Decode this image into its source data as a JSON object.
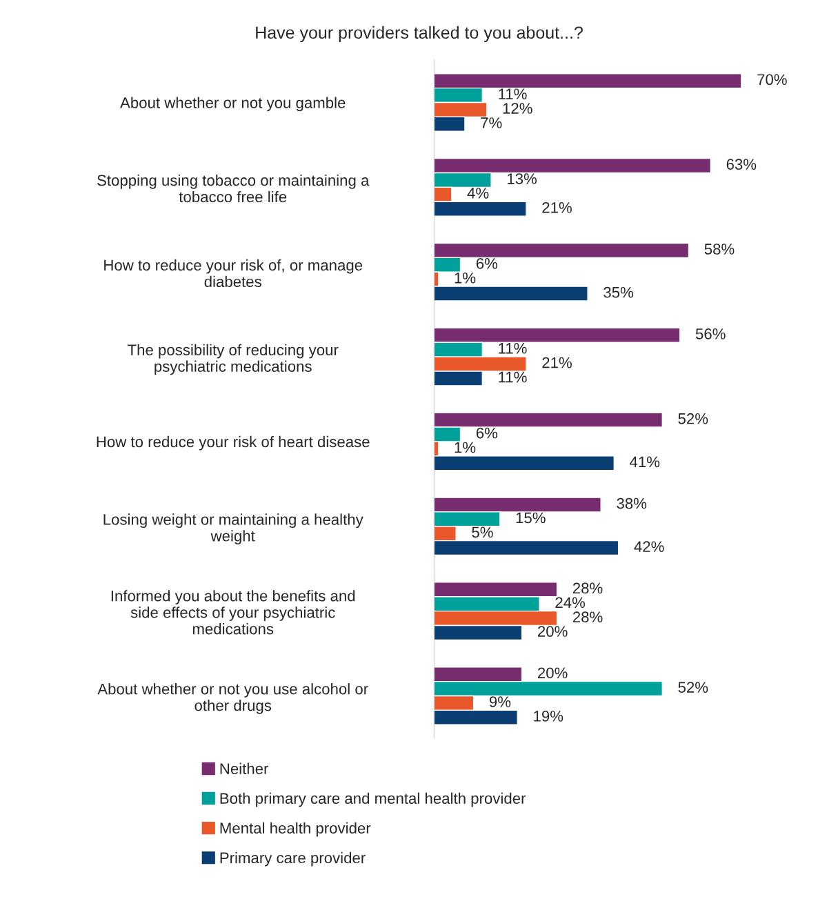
{
  "chart_data": {
    "type": "bar",
    "orientation": "horizontal",
    "title": "Have your providers talked to you about...?",
    "categories": [
      "About whether or not you gamble",
      "Stopping using tobacco or maintaining a\ntobacco free life",
      "How to reduce your risk of, or manage\ndiabetes",
      "The possibility of reducing your\npsychiatric medications",
      "How to reduce your risk of heart disease",
      "Losing weight or maintaining a healthy\nweight",
      "Informed you about the benefits and\nside effects of your psychiatric\nmedications",
      "About whether or not you use alcohol or\nother drugs"
    ],
    "series": [
      {
        "name": "Neither",
        "color": "#772d6f",
        "values": [
          70,
          63,
          58,
          56,
          52,
          38,
          28,
          20
        ],
        "value_labels": [
          "70%",
          "63%",
          "58%",
          "56%",
          "52%",
          "38%",
          "28%",
          "20%"
        ]
      },
      {
        "name": "Both primary care and mental health provider",
        "color": "#00a19a",
        "values": [
          11,
          13,
          6,
          11,
          6,
          15,
          24,
          52
        ],
        "value_labels": [
          "11%",
          "13%",
          "6%",
          "11%",
          "6%",
          "15%",
          "24%",
          "52%"
        ]
      },
      {
        "name": "Mental health provider",
        "color": "#e8582a",
        "values": [
          12,
          4,
          1,
          21,
          1,
          5,
          28,
          9
        ],
        "value_labels": [
          "12%",
          "4%",
          "1%",
          "21%",
          "1%",
          "5%",
          "28%",
          "9%"
        ]
      },
      {
        "name": "Primary care provider",
        "color": "#0b3f73",
        "values": [
          7,
          21,
          35,
          11,
          41,
          42,
          20,
          19
        ],
        "value_labels": [
          "7%",
          "21%",
          "35%",
          "11%",
          "41%",
          "42%",
          "20%",
          "19%"
        ]
      }
    ],
    "legend": "bottom",
    "grid": false
  }
}
